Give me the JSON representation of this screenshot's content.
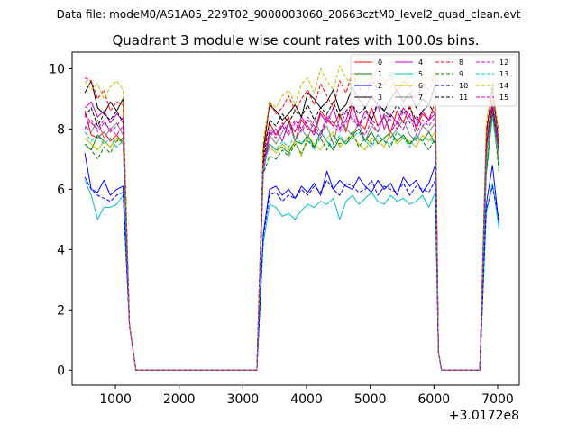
{
  "chart_data": {
    "type": "line",
    "suptitle": "Data file: modeM0/AS1A05_229T02_9000003060_20663cztM0_level2_quad_clean.evt",
    "title": "Quadrant 3 module wise count rates with 100.0s bins.",
    "xlabel": "",
    "ylabel": "",
    "x_offset_label": "+3.0172e8",
    "xlim": [
      320,
      7340
    ],
    "ylim": [
      -0.5,
      10.55
    ],
    "x_ticks": [
      1000,
      2000,
      3000,
      4000,
      5000,
      6000,
      7000
    ],
    "x_tick_labels": [
      "1000",
      "2000",
      "3000",
      "4000",
      "5000",
      "6000",
      "7000"
    ],
    "y_ticks": [
      0,
      2,
      4,
      6,
      8,
      10
    ],
    "y_tick_labels": [
      "0",
      "2",
      "4",
      "6",
      "8",
      "10"
    ],
    "legend": {
      "placement": "top-right",
      "columns": 4
    },
    "series": [
      {
        "name": "0",
        "color": "#ff0000",
        "dash": "solid",
        "seg1": [
          8.6,
          7.8,
          7.7,
          7.9,
          7.6,
          7.8,
          7.5
        ],
        "seg2": [
          7.3,
          8.2,
          7.8,
          8.1,
          8.4,
          7.6,
          8.3,
          8.0,
          7.9,
          8.6,
          8.3,
          8.1,
          8.5,
          7.9,
          8.8,
          8.2,
          8.0,
          8.7,
          8.1,
          8.4,
          7.9,
          8.6,
          8.2,
          8.8,
          8.0,
          8.5,
          8.3,
          8.9
        ],
        "seg3": [
          7.5,
          9.0,
          7.2
        ]
      },
      {
        "name": "1",
        "color": "#008000",
        "dash": "solid",
        "seg1": [
          7.5,
          7.3,
          7.8,
          7.6,
          7.4,
          7.7,
          7.6
        ],
        "seg2": [
          6.8,
          7.5,
          7.3,
          7.4,
          7.2,
          7.6,
          7.5,
          7.8,
          7.4,
          7.9,
          7.6,
          7.3,
          7.7,
          7.5,
          7.8,
          8.0,
          7.6,
          7.9,
          7.5,
          7.7,
          7.9,
          7.6,
          7.8,
          7.5,
          7.7,
          7.6,
          7.9,
          7.5
        ],
        "seg3": [
          6.5,
          8.5,
          6.8
        ]
      },
      {
        "name": "2",
        "color": "#0000ff",
        "dash": "solid",
        "seg1": [
          7.2,
          6.0,
          5.9,
          6.3,
          5.8,
          6.0,
          6.1
        ],
        "seg2": [
          4.5,
          6.0,
          6.1,
          5.8,
          6.0,
          5.7,
          6.1,
          5.9,
          6.2,
          5.8,
          6.6,
          6.0,
          6.3,
          6.1,
          6.0,
          6.4,
          6.1,
          5.9,
          6.3,
          6.0,
          6.2,
          5.8,
          6.4,
          6.1,
          6.3,
          5.9,
          6.2,
          6.8
        ],
        "seg3": [
          5.5,
          6.8,
          4.8
        ]
      },
      {
        "name": "3",
        "color": "#000000",
        "dash": "solid",
        "seg1": [
          9.2,
          9.6,
          8.7,
          8.5,
          8.9,
          8.6,
          9.0
        ],
        "seg2": [
          7.3,
          8.8,
          8.6,
          8.3,
          8.5,
          8.8,
          8.4,
          9.2,
          9.0,
          8.7,
          8.9,
          9.3,
          8.6,
          8.8,
          9.4,
          9.0,
          8.7,
          9.1,
          8.8,
          8.6,
          9.0,
          9.3,
          8.9,
          9.2,
          8.7,
          9.0,
          8.8,
          9.5
        ],
        "seg3": [
          7.8,
          9.4,
          7.5
        ]
      },
      {
        "name": "4",
        "color": "#bf00bf",
        "dash": "solid",
        "seg1": [
          8.7,
          8.9,
          8.4,
          8.6,
          8.2,
          8.5,
          8.3
        ],
        "seg2": [
          6.5,
          7.8,
          8.0,
          7.6,
          8.2,
          7.9,
          8.4,
          8.1,
          7.8,
          8.5,
          8.2,
          8.7,
          8.0,
          8.3,
          8.9,
          8.1,
          8.6,
          8.3,
          8.8,
          8.0,
          8.5,
          8.2,
          8.7,
          8.4,
          8.1,
          8.6,
          8.3,
          8.5
        ],
        "seg3": [
          7.0,
          8.8,
          7.1
        ]
      },
      {
        "name": "5",
        "color": "#00bfbf",
        "dash": "solid",
        "seg1": [
          6.3,
          5.8,
          5.0,
          5.4,
          5.4,
          5.5,
          5.8
        ],
        "seg2": [
          4.2,
          5.5,
          5.4,
          5.1,
          5.2,
          5.0,
          5.3,
          5.5,
          5.4,
          5.6,
          5.5,
          5.7,
          5.0,
          5.6,
          5.8,
          5.5,
          5.7,
          5.9,
          5.6,
          5.5,
          5.8,
          5.6,
          5.7,
          5.5,
          5.6,
          5.8,
          5.4,
          5.9
        ],
        "seg3": [
          5.2,
          6.2,
          4.7
        ]
      },
      {
        "name": "6",
        "color": "#bfbf00",
        "dash": "solid",
        "seg1": [
          7.7,
          7.5,
          7.3,
          7.6,
          7.4,
          7.7,
          7.5
        ],
        "seg2": [
          6.8,
          7.4,
          7.2,
          7.5,
          7.3,
          7.6,
          7.1,
          7.8,
          7.5,
          7.3,
          7.7,
          7.9,
          7.4,
          7.6,
          7.8,
          7.5,
          7.3,
          7.7,
          7.6,
          7.4,
          7.9,
          7.5,
          7.7,
          7.6,
          7.4,
          7.8,
          7.6,
          7.9
        ],
        "seg3": [
          6.9,
          9.0,
          7.0
        ]
      },
      {
        "name": "7",
        "color": "#808080",
        "dash": "solid",
        "seg1": [
          8.1,
          7.9,
          8.3,
          7.7,
          8.0,
          8.2,
          7.8
        ],
        "seg2": [
          6.9,
          7.8,
          7.5,
          7.9,
          8.2,
          7.6,
          8.0,
          7.7,
          8.3,
          7.9,
          8.1,
          7.5,
          8.4,
          8.0,
          7.8,
          8.2,
          7.6,
          8.1,
          7.9,
          8.5,
          7.7,
          8.0,
          8.3,
          7.8,
          7.6,
          8.1,
          7.9,
          8.2
        ],
        "seg3": [
          7.2,
          8.6,
          7.4
        ]
      },
      {
        "name": "8",
        "color": "#ff0000",
        "dash": "dashed",
        "seg1": [
          9.7,
          9.6,
          9.0,
          9.3,
          8.6,
          8.9,
          8.8
        ],
        "seg2": [
          7.0,
          8.9,
          8.5,
          8.7,
          9.1,
          8.6,
          9.0,
          9.3,
          8.8,
          9.5,
          9.1,
          8.7,
          9.6,
          9.2,
          9.9,
          9.4,
          9.0,
          9.7,
          9.3,
          9.5,
          9.8,
          9.2,
          9.6,
          9.4,
          9.0,
          9.5,
          9.3,
          9.9
        ],
        "seg3": [
          8.0,
          9.3,
          7.9
        ]
      },
      {
        "name": "9",
        "color": "#008000",
        "dash": "dashed",
        "seg1": [
          7.5,
          7.3,
          7.0,
          7.4,
          7.2,
          7.6,
          7.7
        ],
        "seg2": [
          6.5,
          7.1,
          7.0,
          7.3,
          7.1,
          7.5,
          7.2,
          7.6,
          7.4,
          7.7,
          7.3,
          7.8,
          7.5,
          7.6,
          7.9,
          7.4,
          7.7,
          7.5,
          7.8,
          7.6,
          7.4,
          7.9,
          7.7,
          7.5,
          7.8,
          7.6,
          7.3,
          7.7
        ],
        "seg3": [
          6.7,
          8.7,
          6.6
        ]
      },
      {
        "name": "10",
        "color": "#0000ff",
        "dash": "dashed",
        "seg1": [
          6.4,
          6.0,
          5.8,
          5.7,
          5.6,
          5.8,
          5.9
        ],
        "seg2": [
          4.4,
          5.8,
          5.9,
          5.6,
          5.8,
          5.7,
          6.0,
          5.8,
          6.1,
          5.9,
          6.3,
          6.0,
          5.8,
          6.2,
          6.1,
          5.9,
          6.0,
          6.3,
          5.8,
          6.1,
          6.0,
          5.9,
          6.2,
          5.8,
          6.1,
          6.0,
          5.9,
          6.3
        ],
        "seg3": [
          5.3,
          6.1,
          5.0
        ]
      },
      {
        "name": "11",
        "color": "#000000",
        "dash": "dashed",
        "seg1": [
          8.4,
          8.7,
          8.1,
          8.5,
          8.3,
          8.6,
          8.2
        ],
        "seg2": [
          6.9,
          8.3,
          8.1,
          8.5,
          8.2,
          8.6,
          8.4,
          8.8,
          8.3,
          8.7,
          8.5,
          8.9,
          8.4,
          8.6,
          8.8,
          8.5,
          8.7,
          8.3,
          8.9,
          8.6,
          8.4,
          8.8,
          8.5,
          8.7,
          8.3,
          8.6,
          8.8,
          8.5
        ],
        "seg3": [
          7.5,
          8.8,
          7.3
        ]
      },
      {
        "name": "12",
        "color": "#bf00bf",
        "dash": "dashed",
        "seg1": [
          8.5,
          8.2,
          8.0,
          8.3,
          7.9,
          8.1,
          8.4
        ],
        "seg2": [
          6.7,
          8.0,
          7.8,
          8.2,
          7.9,
          8.3,
          8.0,
          8.4,
          8.1,
          7.8,
          8.5,
          8.2,
          8.0,
          8.6,
          8.3,
          8.1,
          8.4,
          8.2,
          7.9,
          8.5,
          8.3,
          8.0,
          8.6,
          8.2,
          8.4,
          8.1,
          8.3,
          8.7
        ],
        "seg3": [
          7.3,
          8.9,
          7.4
        ]
      },
      {
        "name": "13",
        "color": "#00bfbf",
        "dash": "dashed",
        "seg1": [
          7.9,
          7.6,
          7.8,
          7.5,
          7.7,
          7.4,
          7.6
        ],
        "seg2": [
          6.6,
          7.5,
          7.3,
          7.6,
          7.4,
          7.8,
          7.5,
          7.7,
          7.3,
          7.9,
          7.6,
          7.4,
          7.8,
          7.5,
          7.7,
          7.9,
          7.6,
          7.4,
          7.8,
          7.6,
          7.5,
          7.9,
          7.7,
          7.4,
          7.8,
          7.6,
          7.7,
          7.5
        ],
        "seg3": [
          6.8,
          8.4,
          6.9
        ]
      },
      {
        "name": "14",
        "color": "#bfbf00",
        "dash": "dashed",
        "seg1": [
          9.6,
          9.3,
          9.5,
          9.0,
          9.4,
          9.6,
          9.3
        ],
        "seg2": [
          7.6,
          8.9,
          8.7,
          9.1,
          9.3,
          8.8,
          9.5,
          9.7,
          9.2,
          10.0,
          9.6,
          9.3,
          10.1,
          9.7,
          9.4,
          9.9,
          9.5,
          9.8,
          10.0,
          9.6,
          9.3,
          9.8,
          9.5,
          9.9,
          9.4,
          9.7,
          9.6,
          10.0
        ],
        "seg3": [
          8.2,
          9.7,
          7.6
        ]
      },
      {
        "name": "15",
        "color": "#bf00bf",
        "dash": "dashed",
        "seg1": [
          8.0,
          8.3,
          7.9,
          8.2,
          8.0,
          7.8,
          8.1
        ],
        "seg2": [
          6.8,
          7.9,
          7.7,
          8.1,
          7.8,
          8.2,
          7.9,
          8.3,
          8.0,
          7.7,
          8.4,
          8.1,
          7.9,
          8.2,
          8.5,
          8.0,
          7.8,
          8.3,
          8.1,
          8.4,
          7.9,
          8.2,
          8.0,
          8.5,
          7.8,
          8.3,
          8.1,
          8.4
        ],
        "seg3": [
          7.4,
          8.7,
          7.2
        ]
      }
    ]
  }
}
